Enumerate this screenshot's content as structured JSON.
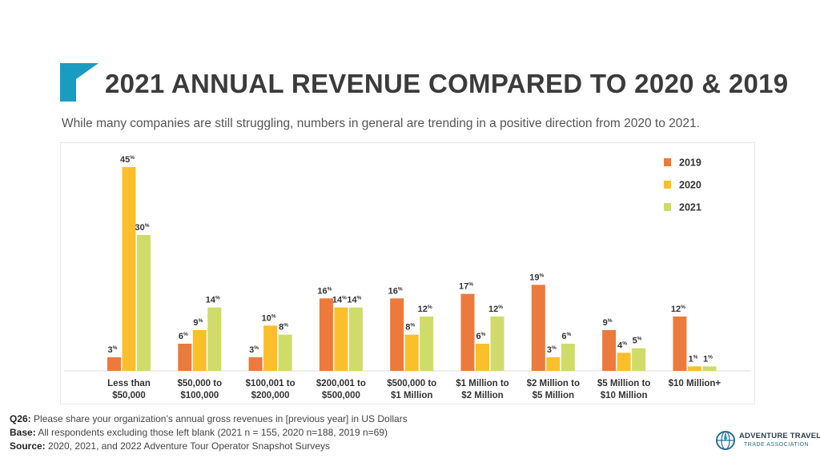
{
  "title": "2021 ANNUAL REVENUE COMPARED TO 2020 & 2019",
  "subtitle": "While many companies are still struggling, numbers in general are trending in a positive direction from 2020 to 2021.",
  "footer": {
    "q_label": "Q26:",
    "q_text": "Please share your organization’s annual gross revenues in [previous year] in US Dollars",
    "base_label": "Base:",
    "base_text": "All respondents excluding those left blank (2021 n = 155, 2020 n=188, 2019 n=69)",
    "source_label": "Source:",
    "source_text": "2020, 2021, and 2022 Adventure Tour Operator Snapshot Surveys"
  },
  "logo": {
    "line1": "ADVENTURE TRAVEL",
    "line2": "TRADE ASSOCIATION",
    "icon": "globe-compass-icon"
  },
  "colors": {
    "accent": "#1a9bc0",
    "series_2019": "#ec7a3c",
    "series_2020": "#fbbf2c",
    "series_2021": "#cfdc6a"
  },
  "chart_data": {
    "type": "bar",
    "categories": [
      [
        "Less than",
        "$50,000"
      ],
      [
        "$50,000 to",
        "$100,000"
      ],
      [
        "$100,001 to",
        "$200,000"
      ],
      [
        "$200,001 to",
        "$500,000"
      ],
      [
        "$500,000 to",
        "$1 Million"
      ],
      [
        "$1 Million to",
        "$2 Million"
      ],
      [
        "$2 Million to",
        "$5 Million"
      ],
      [
        "$5 Million to",
        "$10 Million"
      ],
      [
        "$10 Million+"
      ]
    ],
    "series": [
      {
        "name": "2019",
        "color": "#ec7a3c",
        "values": [
          3,
          6,
          3,
          16,
          16,
          17,
          19,
          9,
          12
        ]
      },
      {
        "name": "2020",
        "color": "#fbbf2c",
        "values": [
          45,
          9,
          10,
          14,
          8,
          6,
          3,
          4,
          1
        ]
      },
      {
        "name": "2021",
        "color": "#cfdc6a",
        "values": [
          30,
          14,
          8,
          14,
          12,
          12,
          6,
          5,
          1
        ]
      }
    ],
    "value_suffix": "%",
    "ylim": [
      0,
      50
    ],
    "grid": false,
    "legend_position": "top-right"
  }
}
